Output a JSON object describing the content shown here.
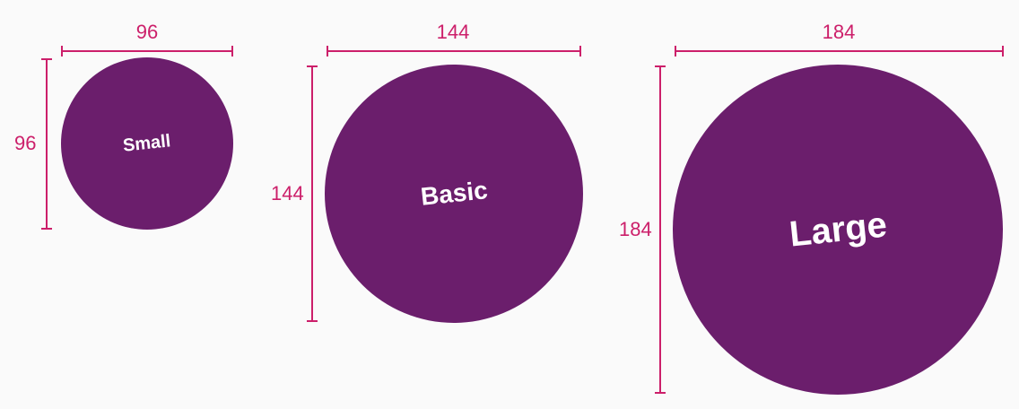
{
  "colors": {
    "background": "#fafafa",
    "circle_fill": "#6b1e6c",
    "circle_text": "#ffffff",
    "dimension": "#cc1f6a"
  },
  "sizes": [
    {
      "label": "Small",
      "width_value": "96",
      "height_value": "96"
    },
    {
      "label": "Basic",
      "width_value": "144",
      "height_value": "144"
    },
    {
      "label": "Large",
      "width_value": "184",
      "height_value": "184"
    }
  ]
}
